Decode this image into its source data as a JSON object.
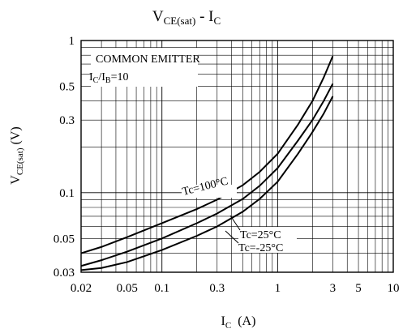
{
  "chart_data": {
    "type": "line",
    "title_main": "V",
    "title_main_sub": "CE(sat)",
    "title_sep": " - I",
    "title_sep_sub": "C",
    "ylabel_main": "V",
    "ylabel_sub": "CE(sat)",
    "ylabel_unit": " (V)",
    "xlabel_main": "I",
    "xlabel_sub": "C",
    "xlabel_unit": "  (A)",
    "xscale": "log",
    "yscale": "log",
    "xlim": [
      0.02,
      10
    ],
    "ylim": [
      0.03,
      1
    ],
    "grid": true,
    "x_ticks": [
      {
        "value": 0.02,
        "label": "0.02"
      },
      {
        "value": 0.05,
        "label": "0.05"
      },
      {
        "value": 0.1,
        "label": "0.1"
      },
      {
        "value": 0.3,
        "label": "0.3"
      },
      {
        "value": 1,
        "label": "1"
      },
      {
        "value": 3,
        "label": "3"
      },
      {
        "value": 5,
        "label": "5"
      },
      {
        "value": 10,
        "label": "10"
      }
    ],
    "y_ticks": [
      {
        "value": 0.03,
        "label": "0.03"
      },
      {
        "value": 0.05,
        "label": "0.05"
      },
      {
        "value": 0.1,
        "label": "0.1"
      },
      {
        "value": 0.3,
        "label": "0.3"
      },
      {
        "value": 0.5,
        "label": "0.5"
      },
      {
        "value": 1,
        "label": "1"
      }
    ],
    "legend_box": {
      "line1": "COMMON EMITTER",
      "line2_a": "I",
      "line2_a_sub": "C",
      "line2_b": "/I",
      "line2_b_sub": "B",
      "line2_c": "=10"
    },
    "series": [
      {
        "name": "Tc=100°C",
        "x": [
          0.02,
          0.03,
          0.05,
          0.1,
          0.2,
          0.3,
          0.5,
          0.7,
          1,
          1.5,
          2,
          2.5,
          3
        ],
        "y": [
          0.04,
          0.044,
          0.051,
          0.063,
          0.078,
          0.09,
          0.112,
          0.137,
          0.18,
          0.28,
          0.4,
          0.57,
          0.79
        ]
      },
      {
        "name": "Tc=25°C",
        "x": [
          0.02,
          0.03,
          0.05,
          0.1,
          0.2,
          0.3,
          0.5,
          0.7,
          1,
          1.5,
          2,
          2.5,
          3
        ],
        "y": [
          0.033,
          0.036,
          0.041,
          0.05,
          0.063,
          0.073,
          0.091,
          0.111,
          0.145,
          0.22,
          0.3,
          0.4,
          0.52
        ]
      },
      {
        "name": "Tc=-25°C",
        "x": [
          0.02,
          0.03,
          0.05,
          0.1,
          0.2,
          0.3,
          0.5,
          0.7,
          1,
          1.5,
          2,
          2.5,
          3
        ],
        "y": [
          0.031,
          0.032,
          0.035,
          0.042,
          0.052,
          0.06,
          0.075,
          0.091,
          0.118,
          0.18,
          0.25,
          0.33,
          0.43
        ]
      }
    ]
  }
}
